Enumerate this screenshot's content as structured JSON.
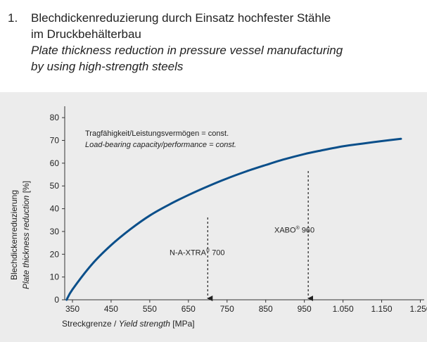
{
  "heading": {
    "number": "1.",
    "title_de_line1": "Blechdickenreduzierung durch Einsatz hochfester Stähle",
    "title_de_line2": "im Druckbehälterbau",
    "title_en_line1": "Plate thickness reduction in pressure vessel manufacturing",
    "title_en_line2": "by using high-strength steels"
  },
  "colors": {
    "curve": "#0b4f8a",
    "panel": "#ececec",
    "text": "#222222"
  },
  "chart_data": {
    "type": "line",
    "title": "",
    "note_de": "Tragfähigkeit/Leistungsvermögen = const.",
    "note_en": "Load-bearing capacity/performance = const.",
    "ylabel_de": "Blechdickenreduzierung",
    "ylabel_en": "Plate thickness reduction",
    "ylabel_unit": "[%]",
    "xlabel_de": "Streckgrenze /",
    "xlabel_en": "Yield strength",
    "xlabel_unit": "[MPa]",
    "xlim": [
      330,
      1260
    ],
    "ylim": [
      0,
      85
    ],
    "xticks": [
      350,
      450,
      550,
      650,
      750,
      850,
      950,
      1050,
      1150,
      1250
    ],
    "xtick_labels": [
      "350",
      "450",
      "550",
      "650",
      "750",
      "850",
      "950",
      "1.050",
      "1.150",
      "1.250"
    ],
    "yticks": [
      0,
      10,
      20,
      30,
      40,
      50,
      60,
      70,
      80
    ],
    "ytick_labels": [
      "0",
      "10",
      "20",
      "30",
      "40",
      "50",
      "60",
      "70",
      "80"
    ],
    "grid": false,
    "series": [
      {
        "x": [
          335,
          350,
          400,
          450,
          500,
          550,
          600,
          650,
          700,
          750,
          800,
          850,
          900,
          950,
          1000,
          1050,
          1100,
          1150,
          1200
        ],
        "y": [
          0,
          4.5,
          15.5,
          24,
          31,
          37,
          41.8,
          46,
          49.8,
          53.3,
          56.4,
          59.2,
          61.8,
          64,
          65.8,
          67.4,
          68.6,
          69.7,
          70.7
        ]
      }
    ],
    "annotations": [
      {
        "label": "N-A-XTRA",
        "reg": "®",
        "value": "700",
        "x": 700
      },
      {
        "label": "XABO",
        "reg": "®",
        "value": "960",
        "x": 960
      }
    ]
  }
}
